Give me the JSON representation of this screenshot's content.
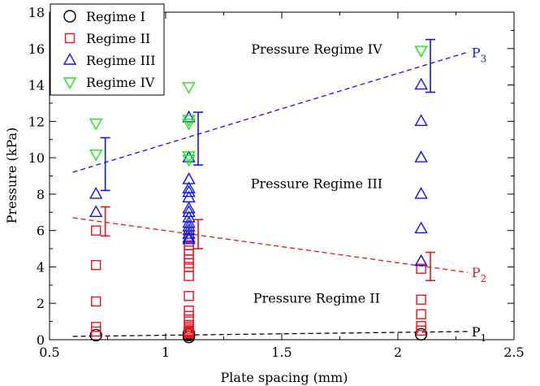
{
  "chart_data": {
    "type": "scatter",
    "xlabel": "Plate spacing (mm)",
    "ylabel": "Pressure (kPa)",
    "xlim": [
      0.5,
      2.5
    ],
    "ylim": [
      0,
      18
    ],
    "xticks": [
      0.5,
      1,
      1.5,
      2,
      2.5
    ],
    "yticks": [
      0,
      2,
      4,
      6,
      8,
      10,
      12,
      14,
      16,
      18
    ],
    "xtick_labels": [
      "0.5",
      "1",
      "1.5",
      "2",
      "2.5"
    ],
    "ytick_labels": [
      "0",
      "2",
      "4",
      "6",
      "8",
      "10",
      "12",
      "14",
      "16",
      "18"
    ],
    "grid": false,
    "legend_position": "top-left",
    "series": [
      {
        "name": "Regime I",
        "marker": "circle",
        "color": "#000000",
        "x": [
          0.7,
          1.1,
          1.1,
          1.1,
          2.1
        ],
        "y": [
          0.25,
          0.15,
          0.25,
          0.35,
          0.3
        ]
      },
      {
        "name": "Regime II",
        "marker": "square",
        "color": "#e8141e",
        "x": [
          0.7,
          0.7,
          0.7,
          0.7,
          0.7,
          1.1,
          1.1,
          1.1,
          1.1,
          1.1,
          1.1,
          1.1,
          1.1,
          1.1,
          1.1,
          1.1,
          1.1,
          1.1,
          1.1,
          1.1,
          1.1,
          1.1,
          1.1,
          1.1,
          2.1,
          2.1,
          2.1,
          2.1,
          2.1
        ],
        "y": [
          6.0,
          4.1,
          2.1,
          0.7,
          0.45,
          5.6,
          5.2,
          4.9,
          4.7,
          4.4,
          4.2,
          4.0,
          3.5,
          2.4,
          1.6,
          1.3,
          1.0,
          0.8,
          0.7,
          0.6,
          0.5,
          0.45,
          0.4,
          0.35,
          3.9,
          2.2,
          1.4,
          0.75,
          0.5
        ]
      },
      {
        "name": "Regime III",
        "marker": "triangle-up",
        "color": "#1414e6",
        "x": [
          0.7,
          0.7,
          1.1,
          1.1,
          1.1,
          1.1,
          1.1,
          1.1,
          1.1,
          1.1,
          1.1,
          1.1,
          1.1,
          1.1,
          1.1,
          1.1,
          1.1,
          2.1,
          2.1,
          2.1,
          2.1,
          2.1,
          2.1
        ],
        "y": [
          8.0,
          7.0,
          12.2,
          10.0,
          8.8,
          8.3,
          8.1,
          7.8,
          7.2,
          7.0,
          6.7,
          6.4,
          6.2,
          6.0,
          5.8,
          5.6,
          5.5,
          14.0,
          12.0,
          10.0,
          8.0,
          6.1,
          4.3
        ]
      },
      {
        "name": "Regime IV",
        "marker": "triangle-down",
        "color": "#1ee614",
        "x": [
          0.7,
          0.7,
          1.1,
          1.1,
          1.1,
          1.1,
          1.1,
          2.1
        ],
        "y": [
          11.9,
          10.2,
          13.9,
          12.1,
          11.9,
          10.1,
          9.9,
          15.9
        ]
      }
    ],
    "fit_lines": [
      {
        "label_base": "P",
        "label_sub": "1",
        "color": "#000000",
        "x": [
          0.6,
          2.3
        ],
        "y": [
          0.18,
          0.45
        ]
      },
      {
        "label_base": "P",
        "label_sub": "2",
        "color": "#e8141e",
        "x": [
          0.6,
          2.3
        ],
        "y": [
          6.7,
          3.7
        ]
      },
      {
        "label_base": "P",
        "label_sub": "3",
        "color": "#1414e6",
        "x": [
          0.6,
          2.3
        ],
        "y": [
          9.2,
          15.8
        ]
      }
    ],
    "error_bars": [
      {
        "color": "#e8141e",
        "x": 0.74,
        "ylow": 5.7,
        "yhigh": 7.3
      },
      {
        "color": "#e8141e",
        "x": 1.14,
        "ylow": 5.0,
        "yhigh": 6.6
      },
      {
        "color": "#e8141e",
        "x": 2.14,
        "ylow": 3.25,
        "yhigh": 4.8
      },
      {
        "color": "#1414e6",
        "x": 0.74,
        "ylow": 8.2,
        "yhigh": 11.1
      },
      {
        "color": "#1414e6",
        "x": 1.14,
        "ylow": 9.6,
        "yhigh": 12.5
      },
      {
        "color": "#1414e6",
        "x": 2.14,
        "ylow": 13.6,
        "yhigh": 16.5
      }
    ],
    "annotations": [
      {
        "text": "Pressure Regime IV",
        "x": 1.65,
        "y": 16.0
      },
      {
        "text": "Pressure Regime III",
        "x": 1.65,
        "y": 8.6
      },
      {
        "text": "Pressure Regime II",
        "x": 1.65,
        "y": 2.3
      }
    ]
  }
}
